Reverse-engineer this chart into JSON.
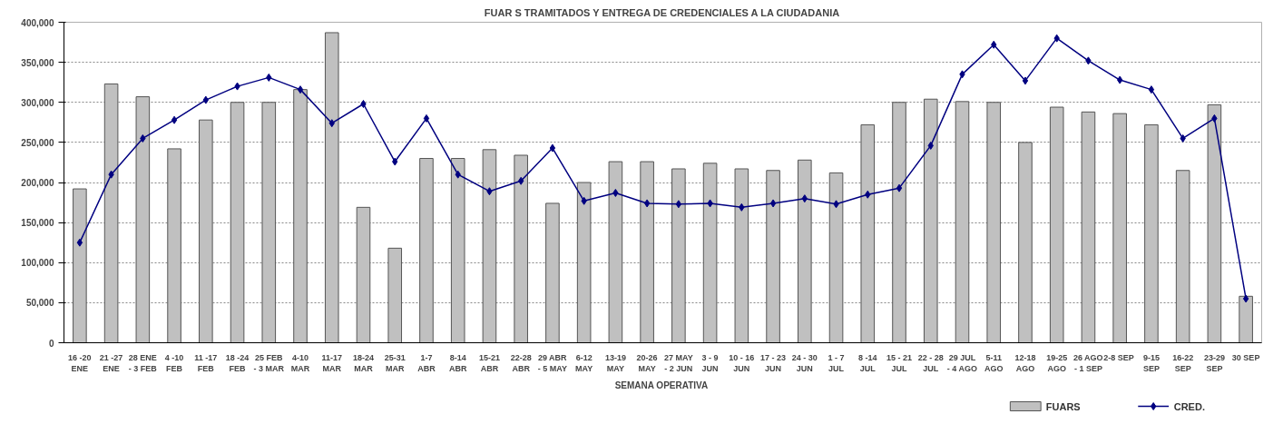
{
  "chart_data": {
    "type": "bar",
    "title": "FUAR S TRAMITADOS Y ENTREGA DE CREDENCIALES A LA CIUDADANIA",
    "xlabel": "SEMANA  OPERATIVA",
    "categories": [
      "16 -20\nENE",
      "21 -27\nENE",
      "28 ENE\n- 3 FEB",
      "4 -10\nFEB",
      "11 -17\nFEB",
      "18 -24\nFEB",
      "25 FEB\n- 3 MAR",
      "4-10\nMAR",
      "11-17\nMAR",
      "18-24\nMAR",
      "25-31\nMAR",
      "1-7\nABR",
      "8-14\nABR",
      "15-21\nABR",
      "22-28\nABR",
      "29 ABR\n- 5 MAY",
      "6-12\nMAY",
      "13-19\nMAY",
      "20-26\nMAY",
      "27 MAY\n- 2 JUN",
      "3 - 9\nJUN",
      "10 - 16\nJUN",
      "17 - 23\nJUN",
      "24 - 30\nJUN",
      "1 - 7\nJUL",
      "8 -14\nJUL",
      "15 - 21\nJUL",
      "22 - 28\nJUL",
      "29 JUL\n- 4 AGO",
      "5-11\nAGO",
      "12-18\nAGO",
      "19-25\nAGO",
      "26 AGO\n- 1 SEP",
      "2-8  SEP",
      "9-15\nSEP",
      "16-22\nSEP",
      "23-29\nSEP",
      "30 SEP"
    ],
    "series": [
      {
        "name": "FUARS",
        "color": "#c0c0c0",
        "values": [
          192000,
          323000,
          307000,
          242000,
          278000,
          300000,
          300000,
          316000,
          387000,
          169000,
          118000,
          230000,
          230000,
          241000,
          234000,
          174000,
          200000,
          226000,
          226000,
          217000,
          224000,
          217000,
          215000,
          228000,
          212000,
          272000,
          300000,
          304000,
          301000,
          300000,
          250000,
          294000,
          288000,
          286000,
          272000,
          215000,
          297000,
          58000
        ]
      },
      {
        "name": "CRED.",
        "type": "line",
        "color": "#000080",
        "marker": "diamond",
        "values": [
          125000,
          210000,
          255000,
          278000,
          303000,
          320000,
          331000,
          316000,
          274000,
          298000,
          226000,
          280000,
          210000,
          189000,
          202000,
          243000,
          177000,
          187000,
          174000,
          173000,
          174000,
          169000,
          174000,
          180000,
          173000,
          185000,
          193000,
          246000,
          335000,
          372000,
          327000,
          380000,
          352000,
          328000,
          316000,
          255000,
          280000,
          55000
        ]
      }
    ],
    "ylim": [
      0,
      400000
    ],
    "yticks": [
      {
        "value": 0,
        "label": "0"
      },
      {
        "value": 50000,
        "label": "50,000"
      },
      {
        "value": 100000,
        "label": "100,000"
      },
      {
        "value": 150000,
        "label": "150,000"
      },
      {
        "value": 200000,
        "label": "200,000"
      },
      {
        "value": 250000,
        "label": "250,000"
      },
      {
        "value": 300000,
        "label": "300,000"
      },
      {
        "value": 350000,
        "label": "350,000"
      },
      {
        "value": 400000,
        "label": "400,000"
      }
    ],
    "grid": "y",
    "legend": "bottom right"
  }
}
